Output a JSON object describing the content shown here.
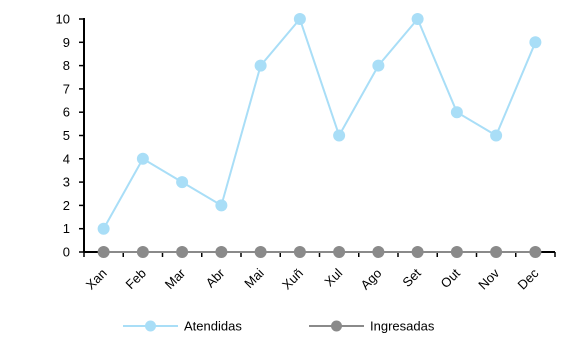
{
  "chart_data": {
    "type": "line",
    "categories": [
      "Xan",
      "Feb",
      "Mar",
      "Abr",
      "Mai",
      "Xuñ",
      "Xul",
      "Ago",
      "Set",
      "Out",
      "Nov",
      "Dec"
    ],
    "series": [
      {
        "name": "Atendidas",
        "values": [
          1,
          4,
          3,
          2,
          8,
          10,
          5,
          8,
          10,
          6,
          5,
          9
        ],
        "color": "#a9def7"
      },
      {
        "name": "Ingresadas",
        "values": [
          0,
          0,
          0,
          0,
          0,
          0,
          0,
          0,
          0,
          0,
          0,
          0
        ],
        "color": "#8a8a8a"
      }
    ],
    "ylim": [
      0,
      10
    ],
    "yticks": [
      0,
      1,
      2,
      3,
      4,
      5,
      6,
      7,
      8,
      9,
      10
    ],
    "grid": false,
    "legend": "bottom"
  }
}
